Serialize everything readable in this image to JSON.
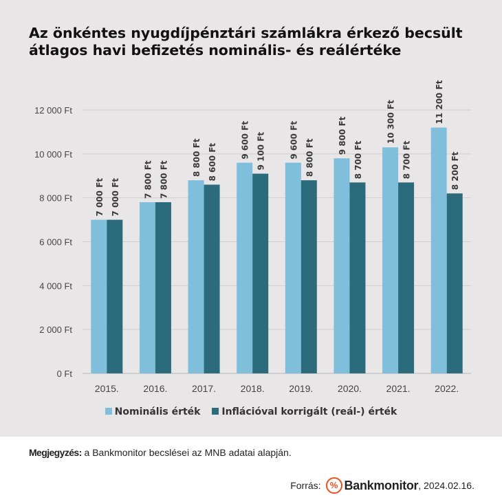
{
  "title_lines": [
    "Az önkéntes nyugdíjpénztári számlákra érkező becsült",
    "átlagos havi befizetés nominális- és reálértéke"
  ],
  "chart_data": {
    "type": "bar",
    "categories": [
      "2015.",
      "2016.",
      "2017.",
      "2018.",
      "2019.",
      "2020.",
      "2021.",
      "2022."
    ],
    "series": [
      {
        "name": "Nominális érték",
        "color": "#7fbfdc",
        "values": [
          7000,
          7800,
          8800,
          9600,
          9600,
          9800,
          10300,
          11200
        ],
        "labels": [
          "7 000 Ft",
          "7 800 Ft",
          "8 800 Ft",
          "9 600 Ft",
          "9 600 Ft",
          "9 800 Ft",
          "10 300 Ft",
          "11 200 Ft"
        ]
      },
      {
        "name": "Inflációval korrigált (reál-) érték",
        "color": "#2b6b7c",
        "values": [
          7000,
          7800,
          8600,
          9100,
          8800,
          8700,
          8700,
          8200
        ],
        "labels": [
          "7 000 Ft",
          "7 800 Ft",
          "8 600 Ft",
          "9 100 Ft",
          "8 800 Ft",
          "8 700 Ft",
          "8 700 Ft",
          "8 200 Ft"
        ]
      }
    ],
    "ylim": [
      0,
      12000
    ],
    "yticks": [
      0,
      2000,
      4000,
      6000,
      8000,
      10000,
      12000
    ],
    "ytick_labels": [
      "0 Ft",
      "2 000 Ft",
      "4 000 Ft",
      "6 000 Ft",
      "8 000 Ft",
      "10 000 Ft",
      "12 000 Ft"
    ],
    "grid": true,
    "legend": "bottom"
  },
  "note": {
    "label": "Megjegyzés:",
    "text": " a Bankmonitor becslései az MNB adatai alapján."
  },
  "source": {
    "prefix": "Forrás:",
    "brand_icon": "%",
    "brand": "Bankmonitor",
    "date": ", 2024.02.16."
  }
}
